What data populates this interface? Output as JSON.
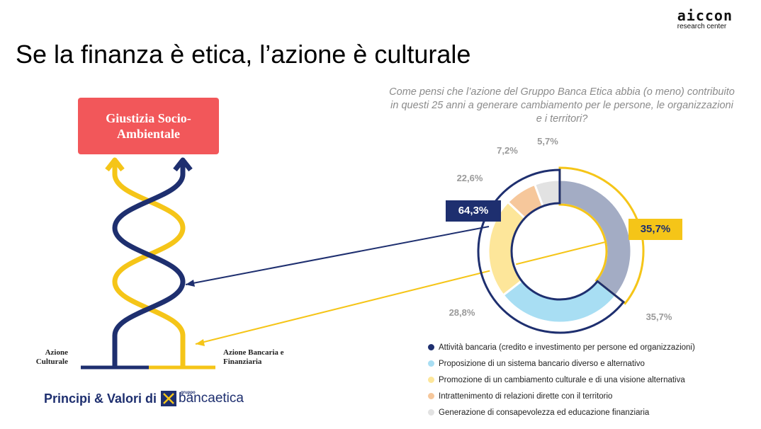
{
  "logo": {
    "word": "aiccon",
    "sub": "research center"
  },
  "slide_title": "Se la finanza è etica, l’azione è culturale",
  "question": "Come pensi che l’azione del Gruppo Banca Etica abbia (o meno) contribuito in questi 25 anni a generare cambiamento per le persone, le organizzazioni e i territori?",
  "diagram": {
    "top_box": "Giustizia Socio-Ambientale",
    "left_label": "Azione Culturale",
    "right_label": "Azione Bancaria e Finanziaria"
  },
  "footer": {
    "text": "Principi & Valori di",
    "bank_name": "bancaetica",
    "bank_group": "gruppo"
  },
  "colors": {
    "navy": "#1e2f6f",
    "yellow": "#f5c518",
    "red": "#f2575a"
  },
  "groups": [
    {
      "label": "64,3%",
      "color": "#1e2f6f"
    },
    {
      "label": "35,7%",
      "color": "#f5c518"
    }
  ],
  "chart_data": {
    "type": "pie",
    "variant": "donut",
    "title": "",
    "categories": [
      "Attività bancaria (credito e investimento per persone ed organizzazioni)",
      "Proposizione di un sistema bancario diverso e alternativo",
      "Promozione di un cambiamento culturale e di una visione alternativa",
      "Intrattenimento di relazioni dirette con il territorio",
      "Generazione di consapevolezza ed educazione finanziaria"
    ],
    "values": [
      35.7,
      28.8,
      22.6,
      7.2,
      5.7
    ],
    "value_labels": [
      "35,7%",
      "28,8%",
      "22,6%",
      "7,2%",
      "5,7%"
    ],
    "colors": [
      "#a3acc4",
      "#a8def3",
      "#fde69a",
      "#f6c79b",
      "#e2e2e2"
    ],
    "legend_position": "bottom"
  }
}
